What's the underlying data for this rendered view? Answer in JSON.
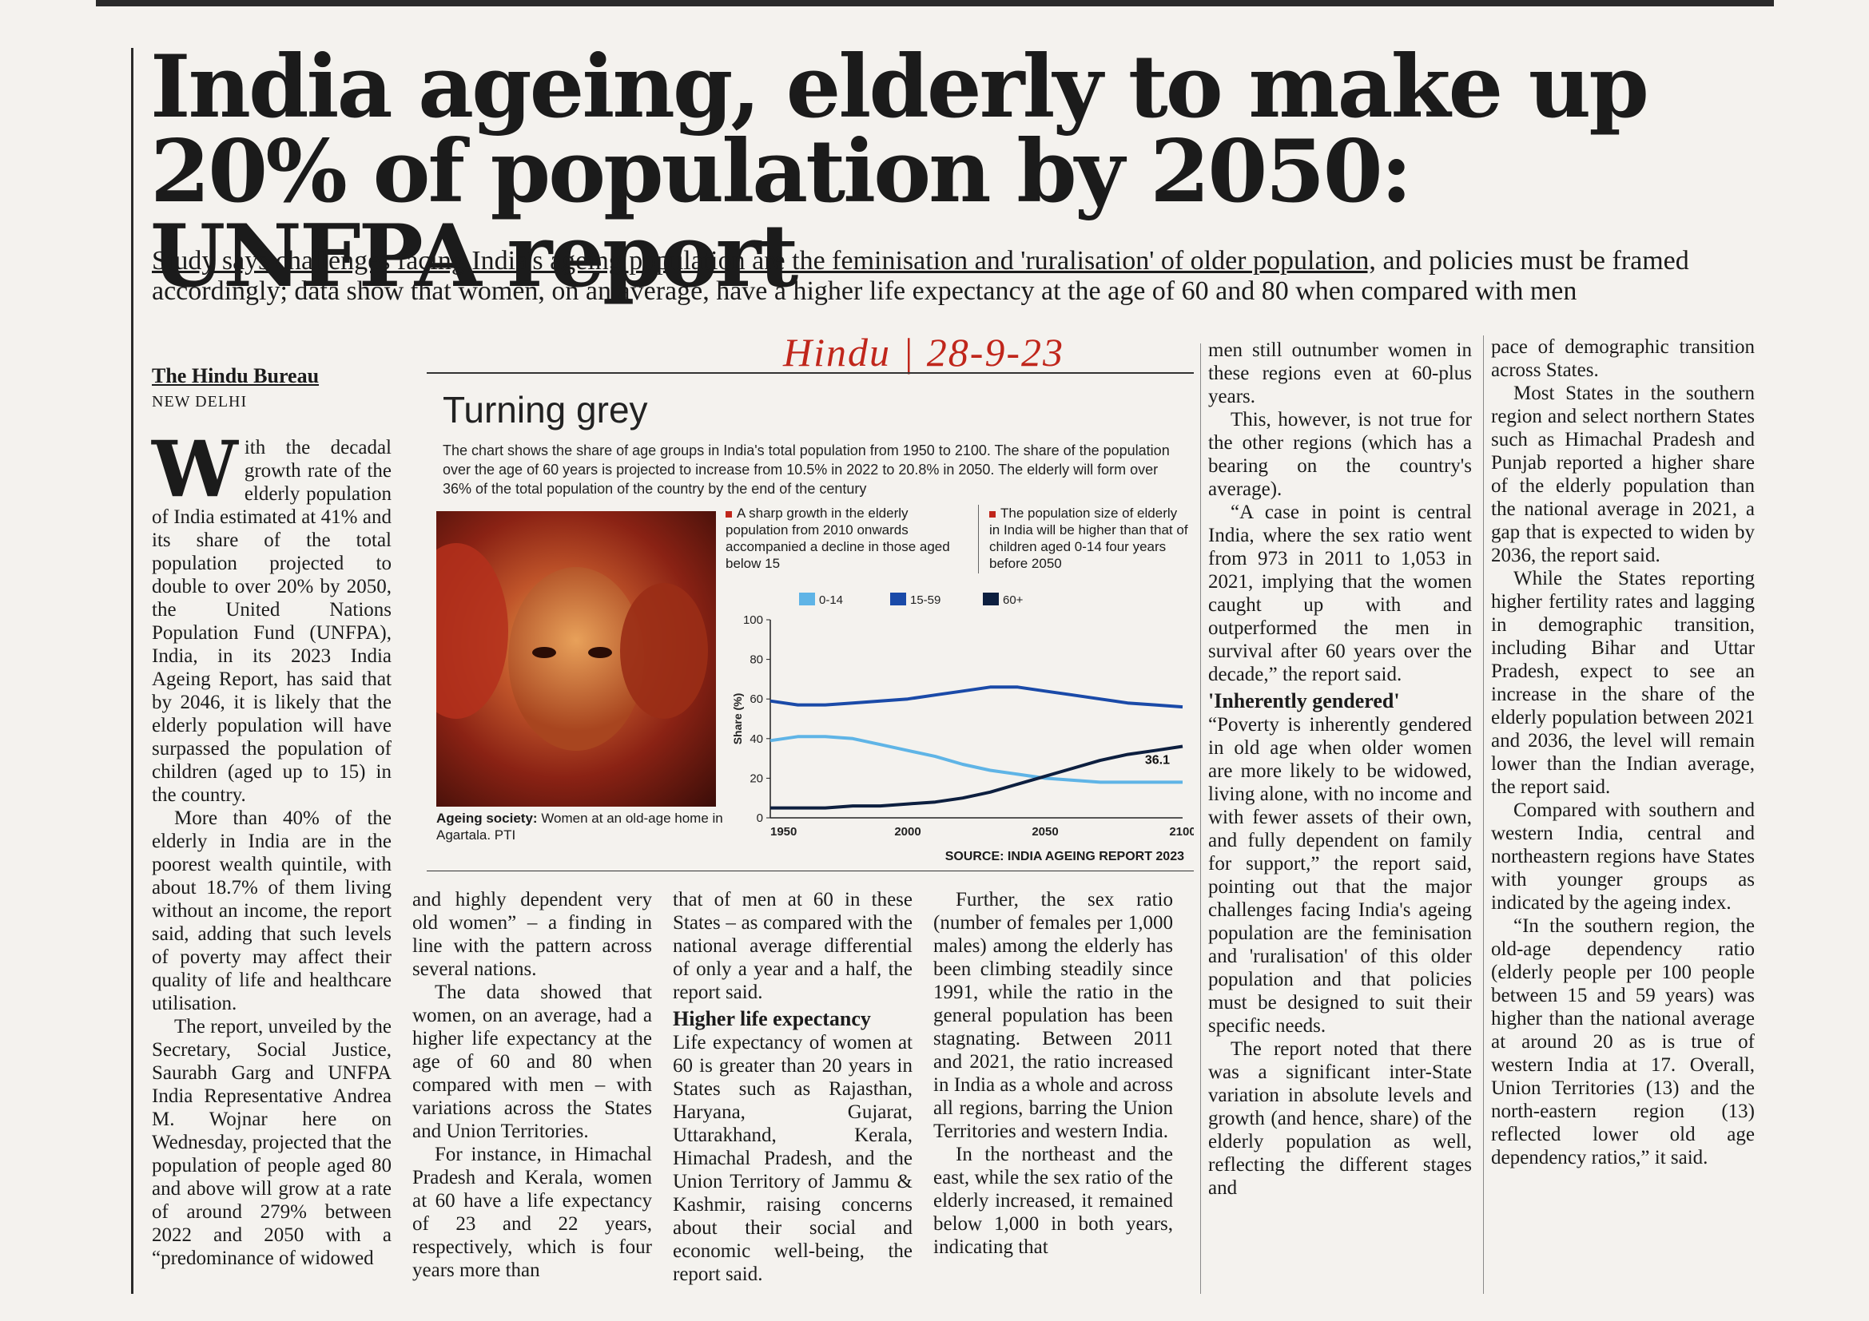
{
  "headline": "India ageing, elderly to make up 20% of population by 2050: UNFPA report",
  "subhead": {
    "underlined": "Study says challenges facing India's ageing population are the feminisation and 'ruralisation' of older population,",
    "rest": " and policies must be framed accordingly; data show that women, on an average, have a higher life expectancy at the age of 60 and 80 when compared with men"
  },
  "handwritten_note": "Hindu | 28-9-23",
  "byline": {
    "bureau": "The Hindu Bureau",
    "place": "NEW DELHI"
  },
  "graphic": {
    "title": "Turning grey",
    "description": "The chart shows the share of age groups in India's total population from 1950 to 2100. The share of the population over the age of 60 years is projected to increase from 10.5% in 2022 to 20.8% in 2050. The elderly will form over 36% of the total population of the country by the end of the century",
    "note_1": "A sharp growth in the elderly population from 2010 onwards accompanied a decline in those aged below 15",
    "note_2": "The population size of elderly in India will be higher than that of children aged 0-14 four years before 2050",
    "photo_caption_label": "Ageing society:",
    "photo_caption_text": " Women at an old-age home in Agartala. PTI",
    "source": "SOURCE: INDIA AGEING REPORT 2023"
  },
  "chart_data": {
    "type": "line",
    "title": "",
    "xlabel": "",
    "ylabel": "Share (%)",
    "xlim": [
      1950,
      2100
    ],
    "ylim": [
      0,
      100
    ],
    "yticks": [
      0,
      20,
      40,
      60,
      80,
      100
    ],
    "xticks": [
      1950,
      2000,
      2050,
      2100
    ],
    "legend": "top",
    "annotation": "36.1",
    "series": [
      {
        "name": "0-14",
        "color": "#5fb4e6",
        "x": [
          1950,
          1960,
          1970,
          1980,
          1990,
          2000,
          2010,
          2020,
          2030,
          2040,
          2050,
          2060,
          2070,
          2080,
          2090,
          2100
        ],
        "y": [
          39,
          41,
          41,
          40,
          37,
          34,
          31,
          27,
          24,
          22,
          20,
          19,
          18,
          18,
          18,
          18
        ]
      },
      {
        "name": "15-59",
        "color": "#1a4aa8",
        "x": [
          1950,
          1960,
          1970,
          1980,
          1990,
          2000,
          2010,
          2020,
          2030,
          2040,
          2050,
          2060,
          2070,
          2080,
          2090,
          2100
        ],
        "y": [
          59,
          57,
          57,
          58,
          59,
          60,
          62,
          64,
          66,
          66,
          64,
          62,
          60,
          58,
          57,
          56
        ]
      },
      {
        "name": "60+",
        "color": "#0d1f3f",
        "x": [
          1950,
          1960,
          1970,
          1980,
          1990,
          2000,
          2010,
          2020,
          2030,
          2040,
          2050,
          2060,
          2070,
          2080,
          2090,
          2100
        ],
        "y": [
          5,
          5,
          5,
          6,
          6,
          7,
          8,
          10,
          13,
          17,
          21,
          25,
          29,
          32,
          34,
          36.1
        ]
      }
    ]
  },
  "body": {
    "col1": {
      "dropcap": "W",
      "p1": "ith the decadal growth rate of the elderly population of India estimated at 41% and its share of the total population projected to double to over 20% by 2050, the United Nations Population Fund (UNFPA), India, in its 2023 India Ageing Report, has said that by 2046, it is likely that the elderly population will have surpassed the population of children (aged up to 15) in the country.",
      "p2": "More than 40% of the elderly in India are in the poorest wealth quintile, with about 18.7% of them living without an income, the report said, adding that such levels of poverty may affect their quality of life and healthcare utilisation.",
      "p3": "The report, unveiled by the Secretary, Social Justice, Saurabh Garg and UNFPA India Representative Andrea M. Wojnar here on Wednesday, projected that the population of people aged 80 and above will grow at a rate of around 279% between 2022 and 2050 with a “predominance of widowed"
    },
    "col2": {
      "p1": "and highly dependent very old women” – a finding in line with the pattern across several nations.",
      "p2": "The data showed that women, on an average, had a higher life expectancy at the age of 60 and 80 when compared with men – with variations across the States and Union Territories.",
      "p3": "For instance, in Himachal Pradesh and Kerala, women at 60 have a life expectancy of 23 and 22 years, respectively, which is four years more than"
    },
    "col3": {
      "p1": "that of men at 60 in these States – as compared with the national average differential of only a year and a half, the report said.",
      "h1": "Higher life expectancy",
      "p2": "Life expectancy of women at 60 is greater than 20 years in States such as Rajasthan, Haryana, Gujarat, Uttarakhand, Kerala, Himachal Pradesh, and the Union Territory of Jammu & Kashmir, raising concerns about their social and economic well-being, the report said."
    },
    "col4": {
      "p1": "Further, the sex ratio (number of females per 1,000 males) among the elderly has been climbing steadily since 1991, while the ratio in the general population has been stagnating. Between 2011 and 2021, the ratio increased in India as a whole and across all regions, barring the Union Territories and western India.",
      "p2": "In the northeast and the east, while the sex ratio of the elderly increased, it remained below 1,000 in both years, indicating that"
    },
    "col5": {
      "p1": "men still outnumber women in these regions even at 60-plus years.",
      "p2": "This, however, is not true for the other regions (which has a bearing on the country's average).",
      "p3": "“A case in point is central India, where the sex ratio went from 973 in 2011 to 1,053 in 2021, implying that the women caught up with and outperformed the men in survival after 60 years over the decade,” the report said.",
      "h1": "'Inherently gendered'",
      "p4": "“Poverty is inherently gendered in old age when older women are more likely to be widowed, living alone, with no income and with fewer assets of their own, and fully dependent on family for support,” the report said, pointing out that the major challenges facing India's ageing population are the feminisation and 'ruralisation' of this older population and that policies must be designed to suit their specific needs.",
      "p5": "The report noted that there was a significant inter-State variation in absolute levels and growth (and hence, share) of the elderly population as well, reflecting the different stages and"
    },
    "col6": {
      "p1": "pace of demographic transition across States.",
      "p2": "Most States in the southern region and select northern States such as Himachal Pradesh and Punjab reported a higher share of the elderly population than the national average in 2021, a gap that is expected to widen by 2036, the report said.",
      "p3": "While the States reporting higher fertility rates and lagging in demographic transition, including Bihar and Uttar Pradesh, expect to see an increase in the share of the elderly population between 2021 and 2036, the level will remain lower than the Indian average, the report said.",
      "p4": "Compared with southern and western India, central and northeastern regions have States with younger groups as indicated by the ageing index.",
      "p5": "“In the southern region, the old-age dependency ratio (elderly people per 100 people between 15 and 59 years) was higher than the national average at around 20 as is true of western India at 17. Overall, Union Territories (13) and the north-eastern region (13) reflected lower old age dependency ratios,” it said."
    }
  }
}
